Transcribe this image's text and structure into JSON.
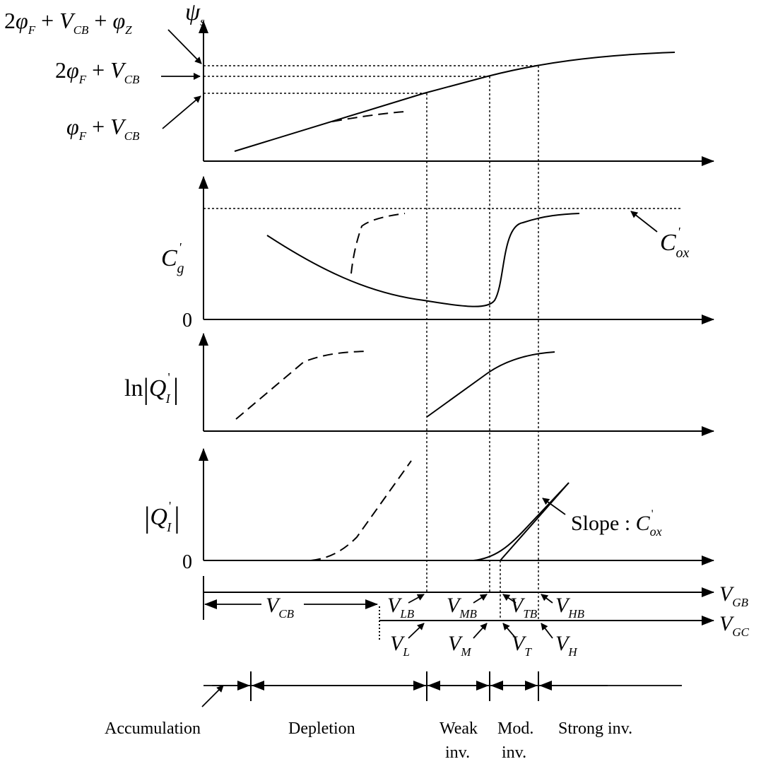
{
  "labels": {
    "psi": "ψ",
    "psi_sub": "s",
    "top1": {
      "a": "2",
      "b": "φ",
      "c": "F",
      "d": " + ",
      "e": "V",
      "f": "CB",
      "g": " + ",
      "h": "φ",
      "i": "Z"
    },
    "top2": {
      "a": "2",
      "b": "φ",
      "c": "F",
      "d": " + ",
      "e": "V",
      "f": "CB"
    },
    "top3": {
      "b": "φ",
      "c": "F",
      "d": " + ",
      "e": "V",
      "f": "CB"
    },
    "cg": {
      "main": "C",
      "sup": "'",
      "sub": "g"
    },
    "zero1": "0",
    "cox": {
      "main": "C",
      "sup": "'",
      "sub": "ox"
    },
    "ln": {
      "pre": "ln",
      "bar": "|",
      "main": "Q",
      "sup": "'",
      "sub": "I"
    },
    "qi": {
      "bar": "|",
      "main": "Q",
      "sup": "'",
      "sub": "I"
    },
    "zero2": "0",
    "slope": {
      "text": "Slope : ",
      "main": "C",
      "sup": "'",
      "sub": "ox"
    },
    "vgb": {
      "main": "V",
      "sub": "GB"
    },
    "vgc": {
      "main": "V",
      "sub": "GC"
    },
    "vcb": {
      "main": "V",
      "sub": "CB"
    },
    "vlb": {
      "main": "V",
      "sub": "LB"
    },
    "vmb": {
      "main": "V",
      "sub": "MB"
    },
    "vtb": {
      "main": "V",
      "sub": "TB"
    },
    "vhb": {
      "main": "V",
      "sub": "HB"
    },
    "vl": {
      "main": "V",
      "sub": "L"
    },
    "vm": {
      "main": "V",
      "sub": "M"
    },
    "vt": {
      "main": "V",
      "sub": "T"
    },
    "vh": {
      "main": "V",
      "sub": "H"
    }
  },
  "regions": {
    "accumulation": "Accumulation",
    "depletion": "Depletion",
    "weak1": "Weak",
    "weak2": "inv.",
    "mod1": "Mod.",
    "mod2": "inv.",
    "strong": "Strong inv."
  }
}
